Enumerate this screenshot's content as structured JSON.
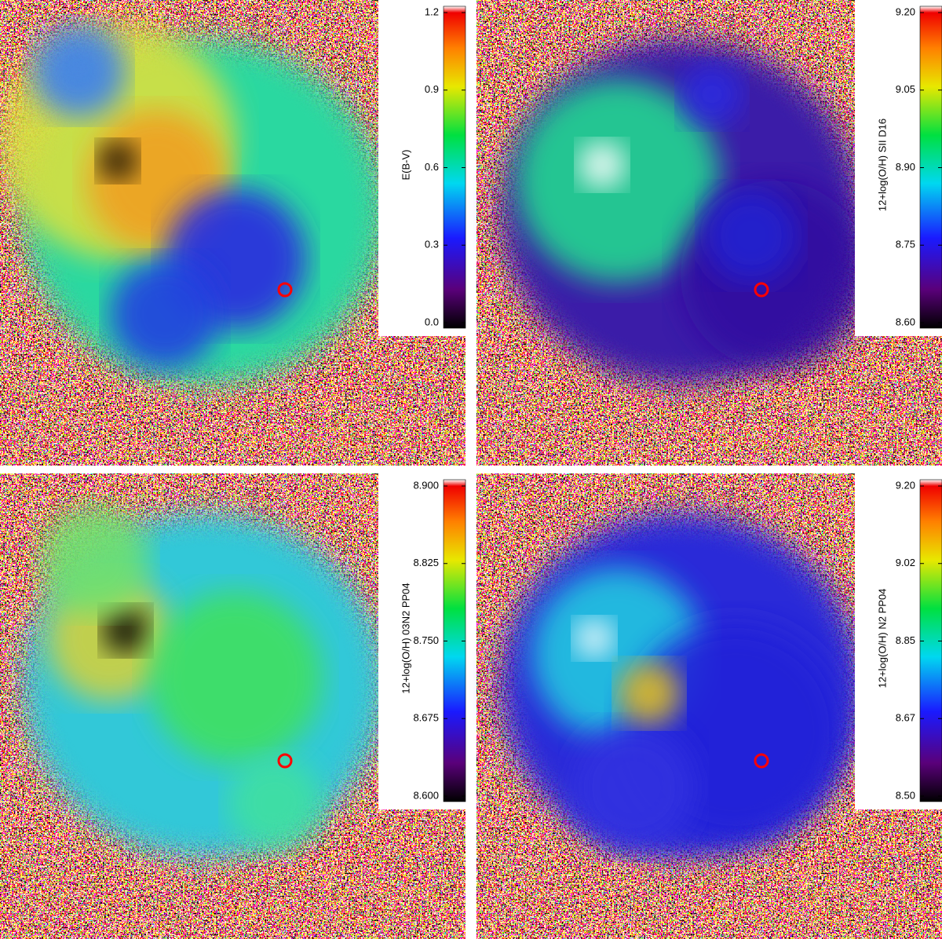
{
  "panels": [
    {
      "colorbar": {
        "label": "E(B-V)",
        "ticks": [
          "1.2",
          "0.9",
          "0.6",
          "0.3",
          "0.0"
        ]
      }
    },
    {
      "colorbar": {
        "label": "12+log(O/H) SII D16",
        "ticks": [
          "9.20",
          "9.05",
          "8.90",
          "8.75",
          "8.60"
        ]
      }
    },
    {
      "colorbar": {
        "label": "12+log(O/H) 03N2 PP04",
        "ticks": [
          "8.900",
          "8.825",
          "8.750",
          "8.675",
          "8.600"
        ]
      }
    },
    {
      "colorbar": {
        "label": "12+log(O/H) N2 PP04",
        "ticks": [
          "9.20",
          "9.02",
          "8.85",
          "8.67",
          "8.50"
        ]
      }
    }
  ]
}
